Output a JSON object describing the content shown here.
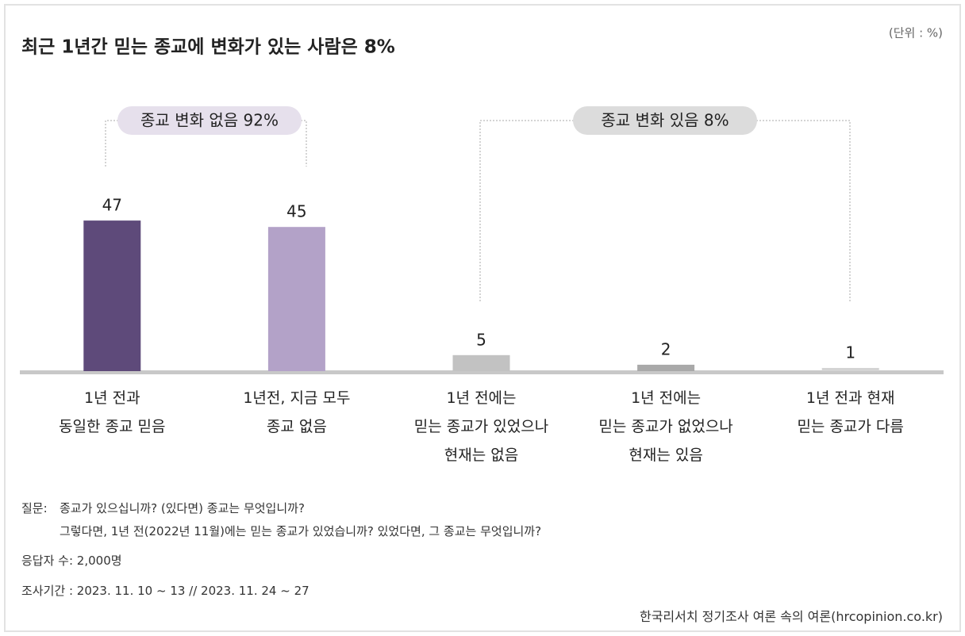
{
  "chart_data": {
    "type": "bar",
    "title": "최근 1년간 믿는 종교에 변화가 있는 사람은 8%",
    "unit": "(단위 : %)",
    "categories": [
      "1년 전과\n동일한 종교 믿음",
      "1년전, 지금 모두\n종교 없음",
      "1년 전에는\n믿는 종교가 있었으나\n현재는 없음",
      "1년 전에는\n믿는 종교가 없었으나\n현재는 있음",
      "1년 전과 현재\n믿는 종교가 다름"
    ],
    "values": [
      47,
      45,
      5,
      2,
      1
    ],
    "colors": [
      "#5e4a7a",
      "#b3a2c8",
      "#c2c2c2",
      "#a9a9a9",
      "#d4d4d4"
    ],
    "ylim": [
      0,
      50
    ],
    "groups": [
      {
        "label": "종교 변화 없음 92%",
        "color": "#e6e0ec"
      },
      {
        "label": "종교 변화 있음 8%",
        "color": "#dcdcdc"
      }
    ],
    "question_label": "질문:",
    "question": [
      "종교가 있으십니까? (있다면) 종교는 무엇입니까?",
      "그렇다면, 1년 전(2022년 11월)에는 믿는 종교가 있었습니까? 있었다면, 그 종교는 무엇입니까?"
    ],
    "respondents": "응답자 수: 2,000명",
    "period": "조사기간 : 2023. 11. 10 ~ 13 // 2023. 11. 24 ~ 27",
    "source": "한국리서치 정기조사 여론 속의 여론(hrcopinion.co.kr)"
  }
}
